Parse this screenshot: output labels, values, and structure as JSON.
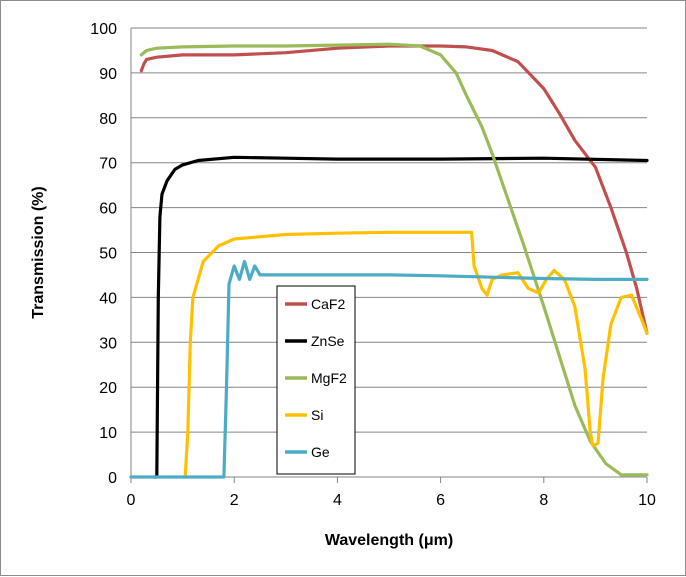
{
  "chart_data": {
    "type": "line",
    "title": "",
    "xlabel": "Wavelength (μm)",
    "ylabel": "Transmission (%)",
    "xlim": [
      0,
      10
    ],
    "ylim": [
      0,
      100
    ],
    "x_ticks": [
      0,
      2,
      4,
      6,
      8,
      10
    ],
    "y_ticks": [
      0,
      10,
      20,
      30,
      40,
      50,
      60,
      70,
      80,
      90,
      100
    ],
    "grid": "horizontal",
    "legend_position": "bottom-center",
    "series": [
      {
        "name": "CaF2",
        "color": "#c0504d",
        "points": [
          [
            0.2,
            90.5
          ],
          [
            0.25,
            92
          ],
          [
            0.3,
            93
          ],
          [
            0.5,
            93.5
          ],
          [
            1,
            94
          ],
          [
            2,
            94
          ],
          [
            3,
            94.5
          ],
          [
            4,
            95.5
          ],
          [
            5,
            96
          ],
          [
            6,
            96
          ],
          [
            6.5,
            95.8
          ],
          [
            7,
            95
          ],
          [
            7.5,
            92.5
          ],
          [
            8,
            86.5
          ],
          [
            8.3,
            81
          ],
          [
            8.6,
            75
          ],
          [
            9,
            69
          ],
          [
            9.3,
            60
          ],
          [
            9.6,
            50
          ],
          [
            9.8,
            42
          ],
          [
            10,
            32
          ]
        ]
      },
      {
        "name": "ZnSe",
        "color": "#000000",
        "points": [
          [
            0.45,
            0
          ],
          [
            0.5,
            0
          ],
          [
            0.53,
            40
          ],
          [
            0.56,
            58
          ],
          [
            0.6,
            63
          ],
          [
            0.7,
            66
          ],
          [
            0.85,
            68.5
          ],
          [
            1,
            69.5
          ],
          [
            1.3,
            70.5
          ],
          [
            2,
            71.2
          ],
          [
            3,
            71
          ],
          [
            4,
            70.8
          ],
          [
            6,
            70.8
          ],
          [
            8,
            71
          ],
          [
            10,
            70.5
          ]
        ]
      },
      {
        "name": "MgF2",
        "color": "#9bbb59",
        "points": [
          [
            0.2,
            94
          ],
          [
            0.3,
            95
          ],
          [
            0.5,
            95.5
          ],
          [
            1,
            95.8
          ],
          [
            2,
            96
          ],
          [
            3,
            96
          ],
          [
            4,
            96.2
          ],
          [
            5,
            96.4
          ],
          [
            5.6,
            96
          ],
          [
            6,
            94
          ],
          [
            6.3,
            90
          ],
          [
            6.5,
            85
          ],
          [
            6.8,
            78
          ],
          [
            7,
            72
          ],
          [
            7.3,
            62
          ],
          [
            7.6,
            52
          ],
          [
            8,
            38
          ],
          [
            8.3,
            27
          ],
          [
            8.6,
            16
          ],
          [
            8.9,
            8
          ],
          [
            9.2,
            3
          ],
          [
            9.5,
            0.5
          ],
          [
            10,
            0.5
          ]
        ]
      },
      {
        "name": "Si",
        "color": "#ffc000",
        "points": [
          [
            1.05,
            0
          ],
          [
            1.1,
            10
          ],
          [
            1.15,
            30
          ],
          [
            1.2,
            40
          ],
          [
            1.4,
            48
          ],
          [
            1.7,
            51.5
          ],
          [
            2,
            53
          ],
          [
            3,
            54
          ],
          [
            4,
            54.3
          ],
          [
            5,
            54.5
          ],
          [
            6,
            54.5
          ],
          [
            6.6,
            54.5
          ],
          [
            6.65,
            47
          ],
          [
            6.8,
            42
          ],
          [
            6.9,
            40.5
          ],
          [
            7,
            44
          ],
          [
            7.2,
            45
          ],
          [
            7.5,
            45.5
          ],
          [
            7.7,
            42
          ],
          [
            7.9,
            41
          ],
          [
            8.05,
            44
          ],
          [
            8.2,
            46
          ],
          [
            8.4,
            44
          ],
          [
            8.6,
            38
          ],
          [
            8.8,
            24
          ],
          [
            8.9,
            10
          ],
          [
            8.95,
            7
          ],
          [
            9.05,
            7.5
          ],
          [
            9.15,
            22
          ],
          [
            9.3,
            34
          ],
          [
            9.5,
            40
          ],
          [
            9.7,
            40.5
          ],
          [
            9.9,
            35
          ],
          [
            10,
            32
          ]
        ]
      },
      {
        "name": "Ge",
        "color": "#4bacc6",
        "points": [
          [
            0,
            0
          ],
          [
            1.8,
            0
          ],
          [
            1.85,
            20
          ],
          [
            1.9,
            43
          ],
          [
            2.0,
            47
          ],
          [
            2.1,
            44
          ],
          [
            2.2,
            48
          ],
          [
            2.3,
            44
          ],
          [
            2.4,
            47
          ],
          [
            2.5,
            45
          ],
          [
            3,
            45
          ],
          [
            4,
            45
          ],
          [
            5,
            45
          ],
          [
            6,
            44.8
          ],
          [
            7,
            44.5
          ],
          [
            8,
            44.2
          ],
          [
            9,
            44
          ],
          [
            10,
            44
          ]
        ]
      }
    ]
  }
}
